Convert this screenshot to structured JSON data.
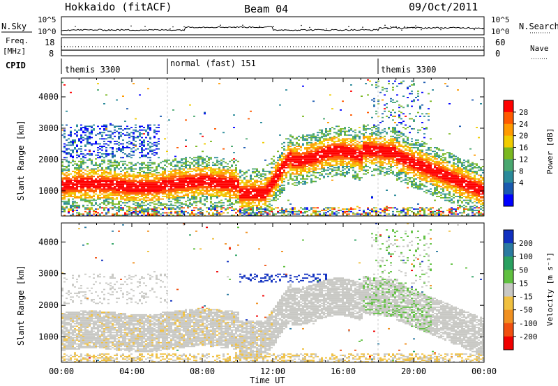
{
  "header": {
    "radar": "Hokkaido (fitACF)",
    "beam": "Beam 04",
    "date": "09/Oct/2011"
  },
  "nsky_panel": {
    "left_label": "N.Sky",
    "right_label": "N.Search",
    "left_ticks": [
      "10^5",
      "10^0"
    ],
    "right_ticks": [
      "10^5",
      "10^0"
    ]
  },
  "freq_panel": {
    "left_label_1": "Freq.",
    "left_label_2": "[MHz]",
    "right_label": "Nave",
    "left_ticks": [
      "18",
      "8"
    ],
    "right_ticks": [
      "60",
      "0"
    ]
  },
  "cpid_panel": {
    "label": "CPID",
    "segments": [
      {
        "text": "themis 3300",
        "start_hour": 0
      },
      {
        "text": "normal (fast) 151",
        "start_hour": 6
      },
      {
        "text": "themis 3300",
        "start_hour": 18
      }
    ]
  },
  "chart_data": [
    {
      "type": "heatmap",
      "quantity": "Power",
      "ylabel": "Slant Range [km]",
      "xlabel": "",
      "xlim_hours": [
        0,
        24
      ],
      "ylim_km": [
        200,
        4600
      ],
      "yticks": [
        1000,
        2000,
        3000,
        4000
      ],
      "colorbar": {
        "label": "Power [dB]",
        "ticks": [
          "28",
          "24",
          "20",
          "16",
          "12",
          "8",
          "4"
        ],
        "colors": [
          "#ff0000",
          "#ff5a00",
          "#ff9a00",
          "#f0cc00",
          "#7ab820",
          "#4aa870",
          "#2a8a9a",
          "#1a5ab0",
          "#0000ff"
        ]
      }
    },
    {
      "type": "heatmap",
      "quantity": "Velocity",
      "ylabel": "Slant Range [km]",
      "xlabel": "Time UT",
      "xlim_hours": [
        0,
        24
      ],
      "ylim_km": [
        200,
        4600
      ],
      "yticks": [
        1000,
        2000,
        3000,
        4000
      ],
      "xtick_labels": [
        "00:00",
        "04:00",
        "08:00",
        "12:00",
        "16:00",
        "20:00",
        "00:00"
      ],
      "colorbar": {
        "label": "Velocity [m s⁻¹]",
        "ticks": [
          "200",
          "100",
          "50",
          "15",
          "-15",
          "-50",
          "-100",
          "-200"
        ],
        "colors": [
          "#1030c0",
          "#2a7aa0",
          "#2aa060",
          "#60c040",
          "#c8c8c4",
          "#f0c040",
          "#f09020",
          "#f05010",
          "#f00000"
        ]
      }
    }
  ]
}
